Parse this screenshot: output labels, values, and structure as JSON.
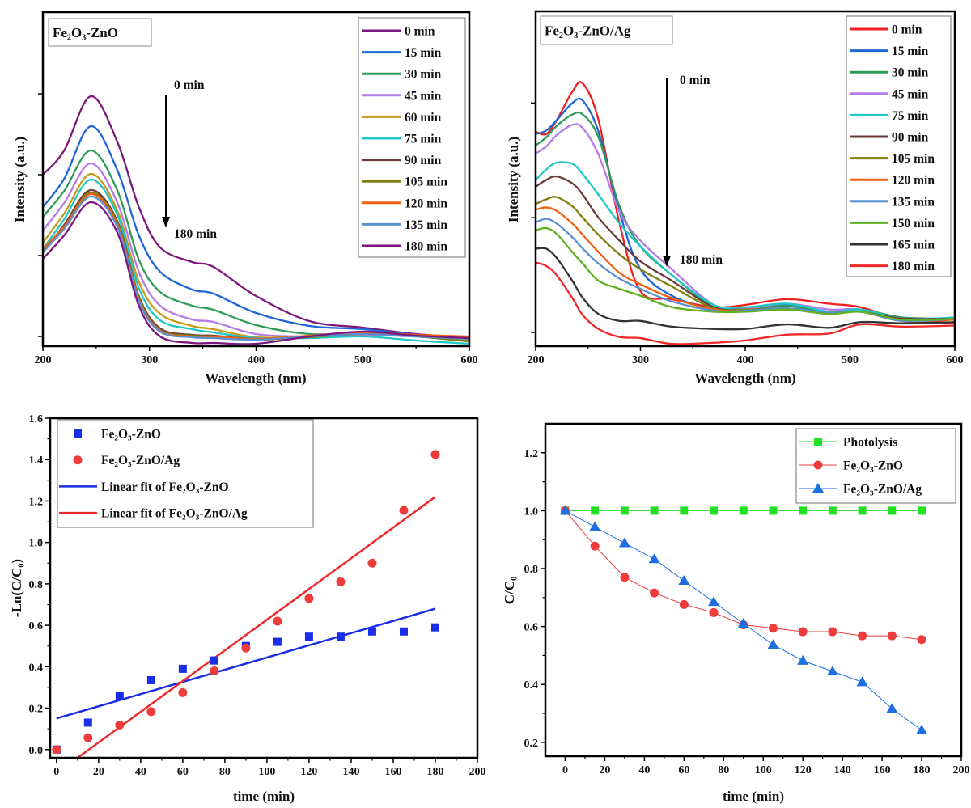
{
  "chart_data": [
    {
      "type": "line",
      "title": "Fe₂O₃-ZnO",
      "xlabel": "Wavelength (nm)",
      "ylabel": "Intensity (a.u.)",
      "xlim": [
        200,
        600
      ],
      "ylim": [
        -0.12,
        4.01
      ],
      "xticks": [
        200,
        300,
        400,
        500,
        600
      ],
      "yticks_unlabeled": [
        0,
        1,
        2,
        3
      ],
      "grid": false,
      "legend": "top-right",
      "annotation": {
        "top": "0 min",
        "bottom": "180 min",
        "arrow": "down"
      },
      "x": [
        200,
        220,
        245,
        270,
        290,
        310,
        340,
        360,
        400,
        450,
        500,
        550,
        600
      ],
      "series": [
        {
          "name": "0 min",
          "color": "#7b1a7b",
          "values": [
            2.0,
            2.3,
            2.97,
            2.4,
            1.6,
            1.1,
            0.92,
            0.86,
            0.5,
            0.19,
            0.11,
            0.03,
            -0.01
          ]
        },
        {
          "name": "15 min",
          "color": "#1f66d6",
          "values": [
            1.6,
            1.95,
            2.6,
            2.05,
            1.25,
            0.8,
            0.58,
            0.53,
            0.29,
            0.13,
            0.09,
            0.02,
            -0.02
          ]
        },
        {
          "name": "30 min",
          "color": "#2e9b57",
          "values": [
            1.48,
            1.8,
            2.3,
            1.8,
            0.95,
            0.55,
            0.38,
            0.33,
            0.14,
            0.03,
            0.04,
            0.0,
            -0.06
          ]
        },
        {
          "name": "45 min",
          "color": "#b57be6",
          "values": [
            1.31,
            1.65,
            2.14,
            1.65,
            0.8,
            0.38,
            0.21,
            0.18,
            0.03,
            0.0,
            0.02,
            0.0,
            -0.02
          ]
        },
        {
          "name": "60 min",
          "color": "#c79a1c",
          "values": [
            1.16,
            1.52,
            2.01,
            1.55,
            0.68,
            0.28,
            0.13,
            0.09,
            -0.01,
            0.0,
            0.03,
            0.0,
            -0.04
          ]
        },
        {
          "name": "75 min",
          "color": "#1ec8c8",
          "values": [
            1.08,
            1.45,
            1.94,
            1.5,
            0.6,
            0.2,
            0.09,
            0.05,
            -0.02,
            -0.02,
            0.0,
            -0.05,
            -0.09
          ]
        },
        {
          "name": "90 min",
          "color": "#6b3a3a",
          "values": [
            1.04,
            1.38,
            1.81,
            1.42,
            0.5,
            0.1,
            0.02,
            0.01,
            -0.03,
            0.0,
            0.04,
            0.01,
            -0.02
          ]
        },
        {
          "name": "105 min",
          "color": "#808010",
          "values": [
            1.06,
            1.36,
            1.78,
            1.4,
            0.48,
            0.08,
            0.01,
            0.0,
            -0.04,
            -0.01,
            0.03,
            0.0,
            -0.06
          ]
        },
        {
          "name": "120 min",
          "color": "#f06010",
          "values": [
            1.08,
            1.36,
            1.76,
            1.38,
            0.46,
            0.07,
            0.0,
            0.0,
            -0.03,
            0.01,
            0.05,
            0.02,
            0.0
          ]
        },
        {
          "name": "135 min",
          "color": "#5a8fd0",
          "values": [
            1.04,
            1.33,
            1.73,
            1.35,
            0.44,
            0.06,
            -0.01,
            -0.02,
            -0.04,
            0.0,
            0.03,
            0.0,
            -0.03
          ]
        },
        {
          "name": "180 min",
          "color": "#7a1880",
          "values": [
            0.96,
            1.25,
            1.66,
            1.28,
            0.38,
            0.0,
            -0.08,
            -0.08,
            -0.09,
            0.0,
            0.06,
            0.01,
            -0.02
          ]
        }
      ]
    },
    {
      "type": "line",
      "title": "Fe₂O₃-ZnO/Ag",
      "xlabel": "Wavelength (nm)",
      "ylabel": "Intensity (a.u.)",
      "xlim": [
        200,
        600
      ],
      "ylim": [
        -0.12,
        2.8
      ],
      "xticks": [
        200,
        300,
        400,
        500,
        600
      ],
      "yticks_unlabeled": [
        0,
        1,
        2
      ],
      "grid": false,
      "legend": "top-right",
      "annotation": {
        "top": "0 min",
        "bottom": "180 min",
        "arrow": "down"
      },
      "x": [
        200,
        210,
        220,
        235,
        245,
        260,
        280,
        300,
        330,
        370,
        400,
        440,
        480,
        510,
        550,
        600
      ],
      "series": [
        {
          "name": "0 min",
          "color": "#f02020",
          "values": [
            1.75,
            1.73,
            1.85,
            2.1,
            2.17,
            1.85,
            0.95,
            0.36,
            0.29,
            0.22,
            0.24,
            0.29,
            0.25,
            0.22,
            0.11,
            0.08
          ]
        },
        {
          "name": "15 min",
          "color": "#1f66d6",
          "values": [
            1.73,
            1.76,
            1.85,
            2.0,
            2.02,
            1.75,
            1.05,
            0.55,
            0.32,
            0.2,
            0.2,
            0.24,
            0.18,
            0.2,
            0.12,
            0.12
          ]
        },
        {
          "name": "30 min",
          "color": "#2e9b57",
          "values": [
            1.63,
            1.7,
            1.8,
            1.9,
            1.9,
            1.7,
            1.1,
            0.75,
            0.5,
            0.22,
            0.2,
            0.23,
            0.17,
            0.2,
            0.13,
            0.12
          ]
        },
        {
          "name": "45 min",
          "color": "#b57be6",
          "values": [
            1.56,
            1.62,
            1.72,
            1.81,
            1.78,
            1.55,
            1.05,
            0.8,
            0.55,
            0.24,
            0.21,
            0.25,
            0.2,
            0.2,
            0.12,
            0.12
          ]
        },
        {
          "name": "75 min",
          "color": "#1ec8c8",
          "values": [
            1.33,
            1.42,
            1.48,
            1.47,
            1.38,
            1.2,
            0.95,
            0.75,
            0.5,
            0.24,
            0.22,
            0.25,
            0.18,
            0.2,
            0.12,
            0.13
          ]
        },
        {
          "name": "90 min",
          "color": "#6b3a3a",
          "values": [
            1.27,
            1.33,
            1.36,
            1.3,
            1.2,
            1.0,
            0.8,
            0.62,
            0.45,
            0.22,
            0.2,
            0.2,
            0.17,
            0.18,
            0.12,
            0.12
          ]
        },
        {
          "name": "105 min",
          "color": "#808010",
          "values": [
            1.12,
            1.16,
            1.18,
            1.1,
            1.0,
            0.85,
            0.68,
            0.55,
            0.4,
            0.21,
            0.2,
            0.21,
            0.17,
            0.18,
            0.11,
            0.12
          ]
        },
        {
          "name": "120 min",
          "color": "#f06010",
          "values": [
            1.07,
            1.09,
            1.06,
            0.95,
            0.85,
            0.7,
            0.52,
            0.42,
            0.3,
            0.2,
            0.19,
            0.2,
            0.17,
            0.18,
            0.1,
            0.11
          ]
        },
        {
          "name": "135 min",
          "color": "#5a8fd0",
          "values": [
            0.96,
            0.99,
            0.95,
            0.83,
            0.73,
            0.6,
            0.47,
            0.38,
            0.27,
            0.19,
            0.19,
            0.21,
            0.17,
            0.18,
            0.1,
            0.12
          ]
        },
        {
          "name": "150 min",
          "color": "#60b020",
          "values": [
            0.89,
            0.91,
            0.86,
            0.7,
            0.6,
            0.45,
            0.38,
            0.32,
            0.22,
            0.18,
            0.18,
            0.2,
            0.16,
            0.18,
            0.11,
            0.12
          ]
        },
        {
          "name": "165 min",
          "color": "#333333",
          "values": [
            0.73,
            0.73,
            0.65,
            0.45,
            0.3,
            0.16,
            0.1,
            0.1,
            0.05,
            0.03,
            0.03,
            0.07,
            0.04,
            0.09,
            0.08,
            0.09
          ]
        },
        {
          "name": "180 min",
          "color": "#f02828",
          "values": [
            0.61,
            0.58,
            0.5,
            0.3,
            0.15,
            0.03,
            -0.04,
            -0.05,
            -0.1,
            -0.09,
            -0.07,
            -0.02,
            -0.01,
            0.07,
            0.05,
            0.06
          ]
        }
      ]
    },
    {
      "type": "scatter",
      "xlabel": "time (min)",
      "ylabel": "-Ln(C/C₀)",
      "xlim": [
        -3,
        200
      ],
      "ylim": [
        -0.04,
        1.6
      ],
      "xticks": [
        0,
        20,
        40,
        60,
        80,
        100,
        120,
        140,
        160,
        180,
        200
      ],
      "yticks": [
        "0.0",
        "0.2",
        "0.4",
        "0.6",
        "0.8",
        "1.0",
        "1.2",
        "1.4",
        "1.6"
      ],
      "grid": false,
      "legend": "top-left",
      "x": [
        0,
        15,
        30,
        45,
        60,
        75,
        90,
        105,
        120,
        135,
        150,
        165,
        180
      ],
      "series": [
        {
          "name": "Fe₂O₃-ZnO",
          "color": "#1a2ee8",
          "marker": "square",
          "values": [
            0,
            0.13,
            0.26,
            0.335,
            0.39,
            0.43,
            0.5,
            0.52,
            0.545,
            0.545,
            0.57,
            0.57,
            0.59
          ]
        },
        {
          "name": "Fe₂O₃-ZnO/Ag",
          "color": "#ee3b3b",
          "marker": "circle",
          "values": [
            0,
            0.057,
            0.118,
            0.183,
            0.275,
            0.38,
            0.49,
            0.62,
            0.73,
            0.81,
            0.9,
            1.155,
            1.425
          ]
        }
      ],
      "fits": [
        {
          "name": "Linear fit of Fe₂O₃-ZnO",
          "color": "#1a2ee8",
          "x": [
            0,
            180
          ],
          "values": [
            0.15,
            0.68
          ]
        },
        {
          "name": "Linear fit of Fe₂O₃-ZnO/Ag",
          "color": "#ee2a2a",
          "x": [
            10,
            180
          ],
          "values": [
            -0.04,
            1.22
          ]
        }
      ]
    },
    {
      "type": "line",
      "xlabel": "time (min)",
      "ylabel": "C/C₀",
      "xlim": [
        -10,
        200
      ],
      "ylim": [
        0.152,
        1.3
      ],
      "xticks": [
        0,
        20,
        40,
        60,
        80,
        100,
        120,
        140,
        160,
        180,
        200
      ],
      "yticks": [
        "0.2",
        "0.4",
        "0.6",
        "0.8",
        "1.0",
        "1.2"
      ],
      "grid": false,
      "legend": "top-right",
      "x": [
        0,
        15,
        30,
        45,
        60,
        75,
        90,
        105,
        120,
        135,
        150,
        165,
        180
      ],
      "series": [
        {
          "name": "Photolysis",
          "color": "#22e022",
          "marker": "square",
          "values": [
            1,
            1,
            1,
            1,
            1,
            1,
            1,
            1,
            1,
            1,
            1,
            1,
            1
          ]
        },
        {
          "name": "Fe₂O₃-ZnO",
          "color": "#ee3b3b",
          "marker": "circle",
          "values": [
            1.0,
            0.878,
            0.77,
            0.716,
            0.676,
            0.648,
            0.606,
            0.594,
            0.582,
            0.582,
            0.568,
            0.568,
            0.555
          ]
        },
        {
          "name": "Fe₂O₃-ZnO/Ag",
          "color": "#1e6fe0",
          "marker": "triangle",
          "values": [
            1.0,
            0.944,
            0.888,
            0.833,
            0.758,
            0.685,
            0.61,
            0.537,
            0.482,
            0.445,
            0.408,
            0.316,
            0.242
          ]
        }
      ]
    }
  ]
}
